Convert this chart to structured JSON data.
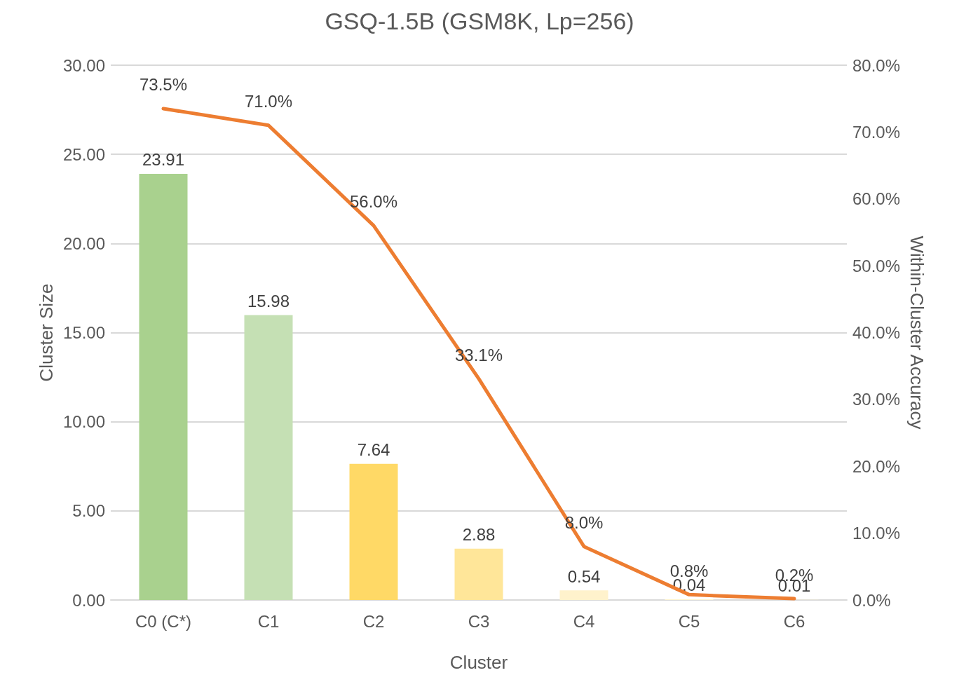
{
  "chart_data": {
    "type": "bar",
    "title": "GSQ-1.5B (GSM8K, Lp=256)",
    "xlabel": "Cluster",
    "ylabel": "Cluster Size",
    "y2label": "Within-Cluster Accuracy",
    "categories": [
      "C0 (C*)",
      "C1",
      "C2",
      "C3",
      "C4",
      "C5",
      "C6"
    ],
    "series": [
      {
        "colors": [
          "#a9d18e",
          "#c5e0b4",
          "#ffd966",
          "#ffe699",
          "#fff2cc",
          "#fff2cc",
          "#fff2cc"
        ],
        "values": [
          23.91,
          15.98,
          7.64,
          2.88,
          0.54,
          0.04,
          0.01
        ],
        "value_labels": [
          "23.91",
          "15.98",
          "7.64",
          "2.88",
          "0.54",
          "0.04",
          "0.01"
        ]
      },
      {
        "type": "line",
        "axis": "y2",
        "color": "#ed7d31",
        "values": [
          73.5,
          71.0,
          56.0,
          33.1,
          8.0,
          0.8,
          0.2
        ],
        "value_labels": [
          "73.5%",
          "71.0%",
          "56.0%",
          "33.1%",
          "8.0%",
          "0.8%",
          "0.2%"
        ]
      }
    ],
    "ylim": [
      0,
      30
    ],
    "yticks": [
      {
        "value": 0,
        "label": "0.00"
      },
      {
        "value": 5,
        "label": "5.00"
      },
      {
        "value": 10,
        "label": "10.00"
      },
      {
        "value": 15,
        "label": "15.00"
      },
      {
        "value": 20,
        "label": "20.00"
      },
      {
        "value": 25,
        "label": "25.00"
      },
      {
        "value": 30,
        "label": "30.00"
      }
    ],
    "y2lim": [
      0,
      80
    ],
    "y2ticks": [
      {
        "value": 0,
        "label": "0.0%"
      },
      {
        "value": 10,
        "label": "10.0%"
      },
      {
        "value": 20,
        "label": "20.0%"
      },
      {
        "value": 30,
        "label": "30.0%"
      },
      {
        "value": 40,
        "label": "40.0%"
      },
      {
        "value": 50,
        "label": "50.0%"
      },
      {
        "value": 60,
        "label": "60.0%"
      },
      {
        "value": 70,
        "label": "70.0%"
      },
      {
        "value": 80,
        "label": "80.0%"
      }
    ],
    "grid": "y",
    "legend": false,
    "marker": "none",
    "line_style": "solid"
  }
}
